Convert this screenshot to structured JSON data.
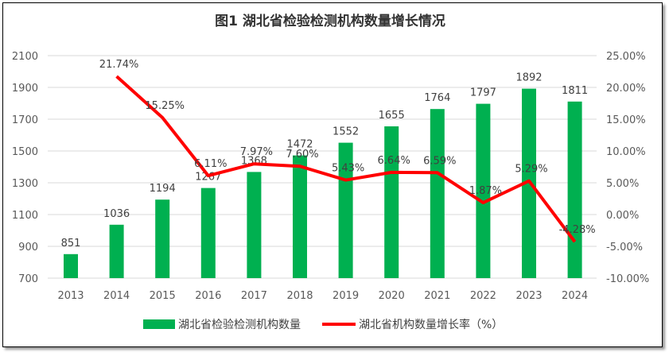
{
  "chart_data": {
    "type": "bar+line",
    "title": "图1 湖北省检验检测机构数量增长情况",
    "categories": [
      "2013",
      "2014",
      "2015",
      "2016",
      "2017",
      "2018",
      "2019",
      "2020",
      "2021",
      "2022",
      "2023",
      "2024"
    ],
    "series": [
      {
        "name": "湖北省检验检测机构数量",
        "type": "bar",
        "axis": "left",
        "color": "#00b050",
        "values": [
          851,
          1036,
          1194,
          1267,
          1368,
          1472,
          1552,
          1655,
          1764,
          1797,
          1892,
          1811
        ],
        "labels": [
          "851",
          "1036",
          "1194",
          "1267",
          "1368",
          "1472",
          "1552",
          "1655",
          "1764",
          "1797",
          "1892",
          "1811"
        ]
      },
      {
        "name": "湖北省机构数量增长率（%）",
        "type": "line",
        "axis": "right",
        "color": "#ff0000",
        "values": [
          null,
          21.74,
          15.25,
          6.11,
          7.97,
          7.6,
          5.43,
          6.64,
          6.59,
          1.87,
          5.29,
          -4.28
        ],
        "labels": [
          "",
          "21.74%",
          "15.25%",
          "6.11%",
          "7.97%",
          "7.60%",
          "5.43%",
          "6.64%",
          "6.59%",
          "1.87%",
          "5.29%",
          "-4.28%"
        ]
      }
    ],
    "y_left": {
      "range": [
        700,
        2100
      ],
      "ticks": [
        "700",
        "900",
        "1100",
        "1300",
        "1500",
        "1700",
        "1900",
        "2100"
      ]
    },
    "y_right": {
      "range": [
        -10,
        25
      ],
      "ticks": [
        "-10.00%",
        "-5.00%",
        "0.00%",
        "5.00%",
        "10.00%",
        "15.00%",
        "20.00%",
        "25.00%"
      ]
    },
    "grid": true,
    "legend": "bottom"
  }
}
